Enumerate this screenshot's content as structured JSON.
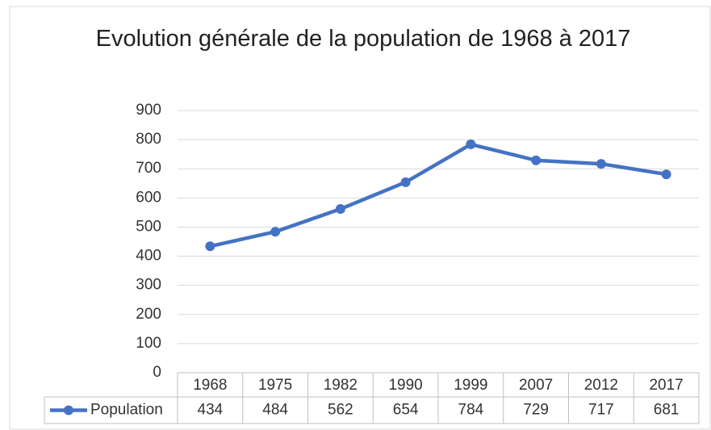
{
  "chart_data": {
    "type": "line",
    "title": "Evolution générale de la population de 1968 à 2017",
    "categories": [
      "1968",
      "1975",
      "1982",
      "1990",
      "1999",
      "2007",
      "2012",
      "2017"
    ],
    "series": [
      {
        "name": "Population",
        "color": "#4472c4",
        "values": [
          434,
          484,
          562,
          654,
          784,
          729,
          717,
          681
        ]
      }
    ],
    "ylim": [
      0,
      900
    ],
    "yticks": [
      0,
      100,
      200,
      300,
      400,
      500,
      600,
      700,
      800,
      900
    ],
    "grid": true
  }
}
